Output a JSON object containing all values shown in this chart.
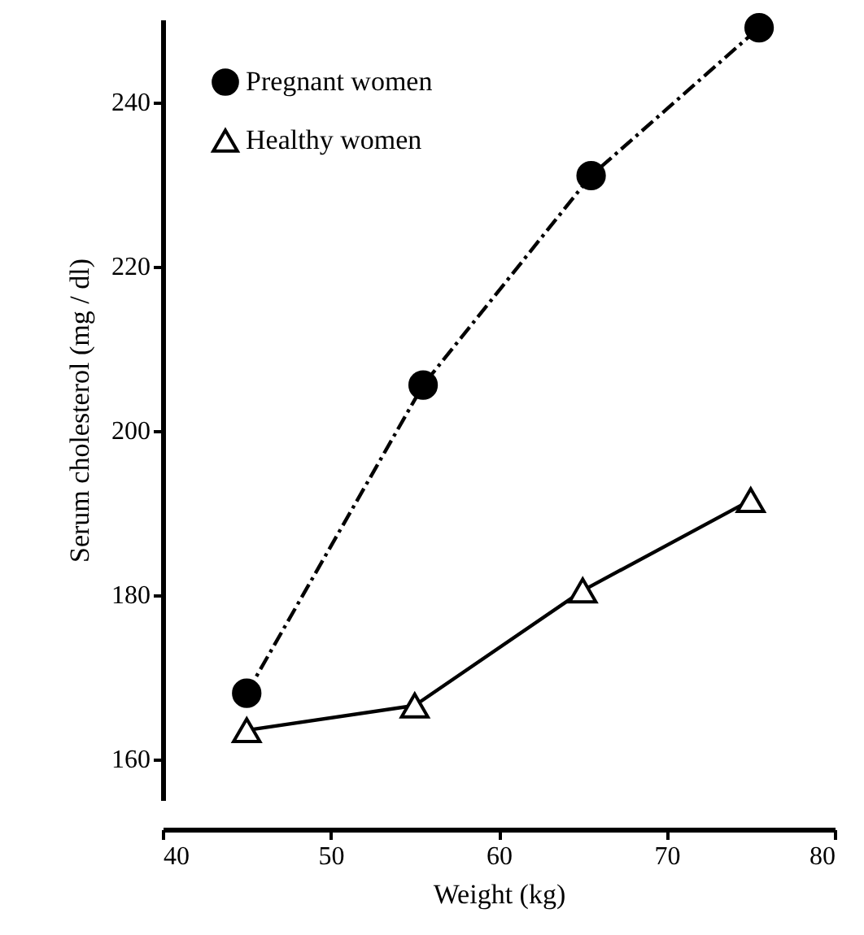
{
  "chart_data": {
    "type": "line",
    "xlabel": "Weight (kg)",
    "ylabel": "Serum cholesterol (mg / dl)",
    "xlim": [
      40,
      80
    ],
    "xticks": [
      40,
      50,
      60,
      70,
      80
    ],
    "ylim": [
      155,
      250
    ],
    "yticks": [
      160,
      180,
      200,
      220,
      240
    ],
    "grid": false,
    "legend": "top left",
    "series": [
      {
        "name": "Pregnant women",
        "color": "#000000",
        "x": [
          45,
          55.5,
          65.5,
          75.5
        ],
        "values": [
          168,
          205.5,
          231,
          249
        ],
        "marker": "circle",
        "line_style": "dashed"
      },
      {
        "name": "Healthy women",
        "color": "#000000",
        "x": [
          45,
          55,
          65,
          75
        ],
        "values": [
          163.5,
          166.5,
          180.5,
          191.5
        ],
        "marker": "triangle",
        "line_style": "solid"
      }
    ]
  }
}
